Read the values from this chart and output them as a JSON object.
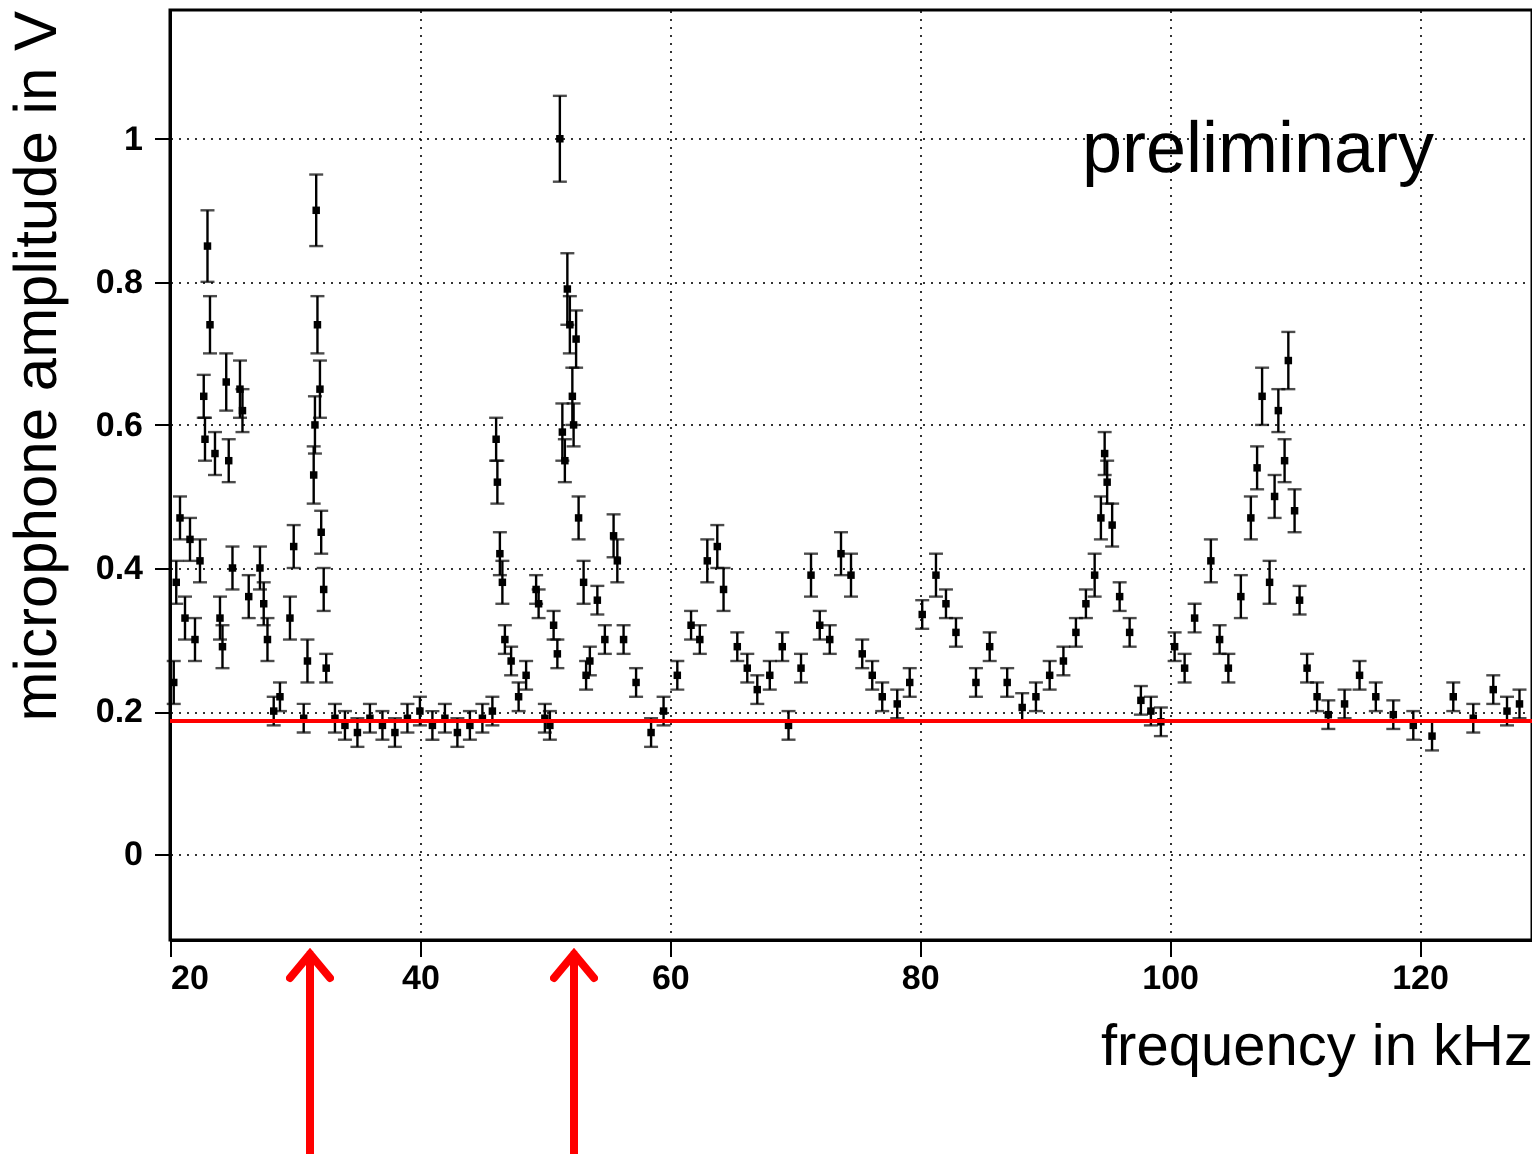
{
  "chart_data": {
    "type": "scatter",
    "xlabel": "frequency in kHz",
    "ylabel": "microphone amplitude in V",
    "annotations": [
      "preliminary"
    ],
    "xlim": [
      20,
      129
    ],
    "ylim": [
      -0.12,
      1.18
    ],
    "xticks": [
      20,
      40,
      60,
      80,
      100,
      120
    ],
    "yticks": [
      0,
      0.2,
      0.4,
      0.6,
      0.8,
      1
    ],
    "grid": true,
    "marker": "square",
    "ref_lines": [
      {
        "axis": "y",
        "value": 0.186,
        "color": "#ff0000"
      }
    ],
    "series": [
      {
        "color": "#000000",
        "x": [
          20.3,
          20.5,
          20.8,
          21.2,
          21.6,
          22.0,
          22.4,
          22.7,
          22.8,
          23.0,
          23.2,
          23.6,
          24.0,
          24.2,
          24.5,
          24.7,
          25.0,
          25.6,
          25.8,
          26.3,
          27.2,
          27.5,
          27.8,
          28.3,
          28.8,
          29.6,
          29.9,
          30.7,
          31.0,
          31.5,
          31.6,
          31.7,
          31.8,
          32.0,
          32.1,
          32.3,
          32.5,
          33.2,
          34.0,
          35.0,
          36.0,
          37.0,
          38.0,
          39.0,
          40.0,
          41.0,
          42.0,
          43.0,
          44.0,
          45.0,
          45.8,
          46.1,
          46.2,
          46.4,
          46.6,
          46.8,
          47.3,
          47.9,
          48.5,
          49.3,
          49.5,
          50.0,
          50.4,
          50.7,
          51.0,
          51.2,
          51.4,
          51.6,
          51.8,
          52.0,
          52.2,
          52.3,
          52.5,
          52.7,
          53.1,
          53.3,
          53.6,
          54.2,
          54.8,
          55.5,
          55.8,
          56.3,
          57.3,
          58.5,
          59.5,
          60.6,
          61.7,
          62.4,
          63.0,
          63.8,
          64.3,
          65.4,
          66.2,
          67.0,
          68.0,
          69.0,
          69.5,
          70.5,
          71.3,
          72.0,
          72.8,
          73.7,
          74.5,
          75.4,
          76.2,
          77.0,
          78.2,
          79.2,
          80.2,
          81.3,
          82.1,
          82.9,
          84.5,
          85.6,
          87.0,
          88.2,
          89.3,
          90.4,
          91.5,
          92.5,
          93.3,
          94.0,
          94.5,
          94.8,
          95.0,
          95.4,
          96.0,
          96.8,
          97.7,
          98.5,
          99.3,
          100.4,
          101.2,
          102.0,
          103.3,
          104.0,
          104.7,
          105.7,
          106.5,
          107.0,
          107.4,
          108.0,
          108.4,
          108.7,
          109.2,
          109.5,
          110.0,
          110.4,
          111.0,
          111.8,
          112.7,
          114.0,
          115.2,
          116.5,
          117.9,
          119.5,
          121.0,
          122.7,
          124.3,
          125.9,
          127.0,
          128.0
        ],
        "values": [
          0.24,
          0.38,
          0.47,
          0.33,
          0.44,
          0.3,
          0.41,
          0.64,
          0.58,
          0.85,
          0.74,
          0.56,
          0.33,
          0.29,
          0.66,
          0.55,
          0.4,
          0.65,
          0.62,
          0.36,
          0.4,
          0.35,
          0.3,
          0.2,
          0.22,
          0.33,
          0.43,
          0.19,
          0.27,
          0.53,
          0.6,
          0.9,
          0.74,
          0.65,
          0.45,
          0.37,
          0.26,
          0.19,
          0.18,
          0.17,
          0.19,
          0.18,
          0.17,
          0.19,
          0.2,
          0.18,
          0.19,
          0.17,
          0.18,
          0.19,
          0.2,
          0.58,
          0.52,
          0.42,
          0.38,
          0.3,
          0.27,
          0.22,
          0.25,
          0.37,
          0.35,
          0.19,
          0.18,
          0.32,
          0.28,
          1.0,
          0.59,
          0.55,
          0.79,
          0.74,
          0.64,
          0.6,
          0.72,
          0.47,
          0.38,
          0.25,
          0.27,
          0.355,
          0.3,
          0.445,
          0.41,
          0.3,
          0.24,
          0.17,
          0.2,
          0.25,
          0.32,
          0.3,
          0.41,
          0.43,
          0.37,
          0.29,
          0.26,
          0.23,
          0.25,
          0.29,
          0.18,
          0.26,
          0.39,
          0.32,
          0.3,
          0.42,
          0.39,
          0.28,
          0.25,
          0.22,
          0.21,
          0.24,
          0.335,
          0.39,
          0.35,
          0.31,
          0.24,
          0.29,
          0.24,
          0.205,
          0.22,
          0.25,
          0.27,
          0.31,
          0.35,
          0.39,
          0.47,
          0.56,
          0.52,
          0.46,
          0.36,
          0.31,
          0.215,
          0.2,
          0.185,
          0.29,
          0.26,
          0.33,
          0.41,
          0.3,
          0.26,
          0.36,
          0.47,
          0.54,
          0.64,
          0.38,
          0.5,
          0.62,
          0.55,
          0.69,
          0.48,
          0.355,
          0.26,
          0.22,
          0.195,
          0.21,
          0.25,
          0.22,
          0.195,
          0.18,
          0.165,
          0.22,
          0.19,
          0.23,
          0.2,
          0.21
        ],
        "errors": [
          0.03,
          0.03,
          0.03,
          0.03,
          0.03,
          0.03,
          0.03,
          0.03,
          0.03,
          0.05,
          0.04,
          0.03,
          0.03,
          0.03,
          0.04,
          0.03,
          0.03,
          0.04,
          0.03,
          0.03,
          0.03,
          0.03,
          0.03,
          0.02,
          0.02,
          0.03,
          0.03,
          0.02,
          0.03,
          0.04,
          0.04,
          0.05,
          0.04,
          0.04,
          0.03,
          0.03,
          0.02,
          0.02,
          0.02,
          0.02,
          0.02,
          0.02,
          0.02,
          0.02,
          0.02,
          0.02,
          0.02,
          0.02,
          0.02,
          0.02,
          0.02,
          0.03,
          0.03,
          0.03,
          0.03,
          0.02,
          0.02,
          0.02,
          0.02,
          0.02,
          0.02,
          0.02,
          0.02,
          0.02,
          0.02,
          0.06,
          0.04,
          0.03,
          0.05,
          0.04,
          0.04,
          0.03,
          0.04,
          0.03,
          0.03,
          0.02,
          0.02,
          0.02,
          0.02,
          0.03,
          0.03,
          0.02,
          0.02,
          0.02,
          0.02,
          0.02,
          0.02,
          0.02,
          0.03,
          0.03,
          0.03,
          0.02,
          0.02,
          0.02,
          0.02,
          0.02,
          0.02,
          0.02,
          0.03,
          0.02,
          0.02,
          0.03,
          0.03,
          0.02,
          0.02,
          0.02,
          0.02,
          0.02,
          0.02,
          0.03,
          0.02,
          0.02,
          0.02,
          0.02,
          0.02,
          0.02,
          0.02,
          0.02,
          0.02,
          0.02,
          0.02,
          0.03,
          0.03,
          0.03,
          0.03,
          0.03,
          0.02,
          0.02,
          0.02,
          0.02,
          0.02,
          0.02,
          0.02,
          0.02,
          0.03,
          0.02,
          0.02,
          0.03,
          0.03,
          0.03,
          0.04,
          0.03,
          0.03,
          0.03,
          0.03,
          0.04,
          0.03,
          0.02,
          0.02,
          0.02,
          0.02,
          0.02,
          0.02,
          0.02,
          0.02,
          0.02,
          0.02,
          0.02,
          0.02,
          0.02,
          0.02,
          0.02
        ]
      }
    ]
  }
}
